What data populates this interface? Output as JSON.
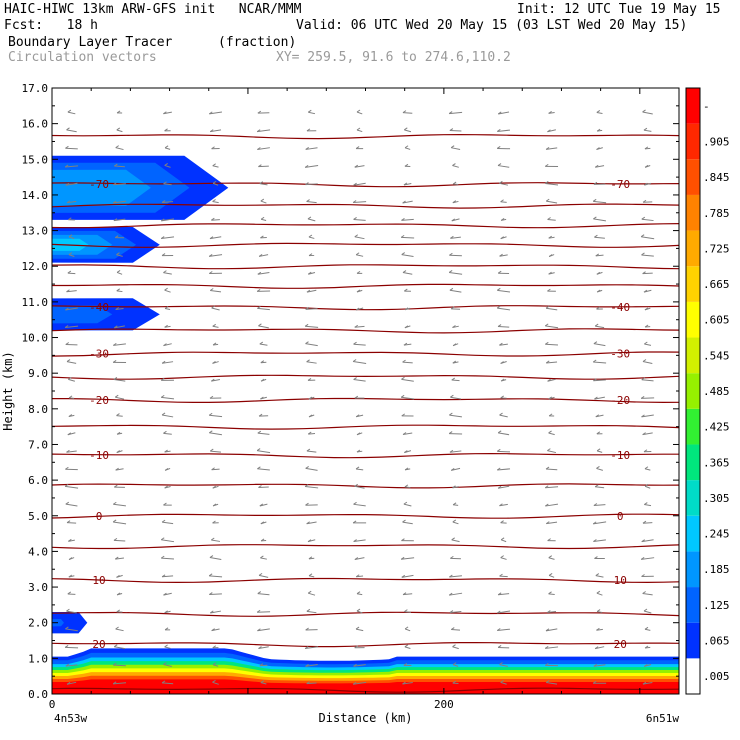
{
  "header": {
    "line1_left": "HAIC-HIWC 13km ARW-GFS init   NCAR/MMM",
    "line1_right": "Init: 12 UTC Tue 19 May 15",
    "line2_left": "Fcst:   18 h",
    "line2_right": "Valid: 06 UTC Wed 20 May 15 (03 LST Wed 20 May 15)",
    "field_name": "Boundary Layer Tracer",
    "field_units": "(fraction)",
    "vector_name": "Circulation vectors",
    "xy_range": "XY= 259.5, 91.6 to 274.6,110.2"
  },
  "colors": {
    "contour": "#8b0000",
    "vector": "#808080",
    "frame": "#000000"
  },
  "chart_data": {
    "type": "heatmap",
    "xlabel": "Distance (km)",
    "ylabel": "Height (km)",
    "xlim": [
      0,
      320
    ],
    "ylim": [
      0,
      17
    ],
    "x_ticks": [
      {
        "value": 0,
        "label": "0"
      },
      {
        "value": 200,
        "label": "200"
      }
    ],
    "x_end_labels": {
      "left": "4n53w",
      "right": "6n51w"
    },
    "y_ticks": [
      "0.0",
      "1.0",
      "2.0",
      "3.0",
      "4.0",
      "5.0",
      "6.0",
      "7.0",
      "8.0",
      "9.0",
      "10.0",
      "11.0",
      "12.0",
      "13.0",
      "14.0",
      "15.0",
      "16.0",
      "17.0"
    ],
    "colorbar": {
      "labels": [
        ".005",
        ".065",
        ".125",
        ".185",
        ".245",
        ".305",
        ".365",
        ".425",
        ".485",
        ".545",
        ".605",
        ".665",
        ".725",
        ".785",
        ".845",
        ".905",
        "-"
      ],
      "colors": [
        "#ffffff",
        "#0032ff",
        "#0064ff",
        "#0096ff",
        "#00c8ff",
        "#00dcc8",
        "#00e67d",
        "#32f032",
        "#96f000",
        "#d2f000",
        "#ffff00",
        "#ffd200",
        "#ffaa00",
        "#ff8200",
        "#ff5000",
        "#ff2800",
        "#ff0000"
      ]
    },
    "temperature_contours": [
      {
        "y": 0.12,
        "label": ""
      },
      {
        "y": 1.4,
        "label": "20"
      },
      {
        "y": 2.25,
        "label": ""
      },
      {
        "y": 3.2,
        "label": "10"
      },
      {
        "y": 4.15,
        "label": ""
      },
      {
        "y": 5.0,
        "label": "0"
      },
      {
        "y": 5.85,
        "label": ""
      },
      {
        "y": 6.7,
        "label": "-10"
      },
      {
        "y": 7.5,
        "label": ""
      },
      {
        "y": 8.25,
        "label": "-20"
      },
      {
        "y": 8.9,
        "label": ""
      },
      {
        "y": 9.55,
        "label": "-30"
      },
      {
        "y": 10.2,
        "label": ""
      },
      {
        "y": 10.85,
        "label": "-40"
      },
      {
        "y": 11.45,
        "label": ""
      },
      {
        "y": 12.0,
        "label": ""
      },
      {
        "y": 12.6,
        "label": ""
      },
      {
        "y": 13.15,
        "label": ""
      },
      {
        "y": 13.7,
        "label": ""
      },
      {
        "y": 14.3,
        "label": "-70"
      },
      {
        "y": 15.65,
        "label": ""
      }
    ],
    "tracer_regions": [
      {
        "name": "boundary-layer",
        "x0": 0,
        "x1": 320,
        "y0": 0,
        "y1": 1.1,
        "max": 0.95
      },
      {
        "name": "lower-plume",
        "x0": 0,
        "x1": 18,
        "y0": 1.7,
        "y1": 2.3,
        "max": 0.07
      },
      {
        "name": "mid-plume",
        "x0": 0,
        "x1": 55,
        "y0": 10.2,
        "y1": 11.1,
        "max": 0.09
      },
      {
        "name": "upper-plume-low",
        "x0": 0,
        "x1": 55,
        "y0": 12.1,
        "y1": 13.1,
        "max": 0.2
      },
      {
        "name": "upper-plume-high",
        "x0": 0,
        "x1": 90,
        "y0": 13.3,
        "y1": 15.1,
        "max": 0.16
      }
    ]
  }
}
